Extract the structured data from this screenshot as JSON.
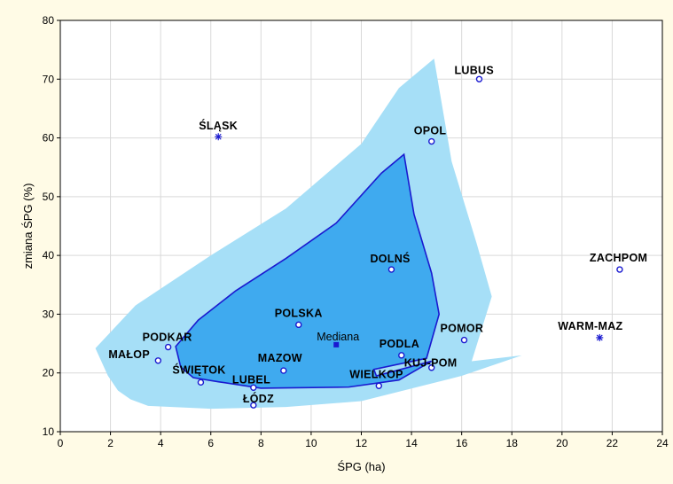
{
  "chart_data": {
    "type": "scatter",
    "xlabel": "ŚPG (ha)",
    "ylabel": "zmiana ŚPG (%)",
    "xlim": [
      0,
      24
    ],
    "ylim": [
      10,
      80
    ],
    "x_ticks": [
      0,
      2,
      4,
      6,
      8,
      10,
      12,
      14,
      16,
      18,
      20,
      22,
      24
    ],
    "y_ticks": [
      10,
      20,
      30,
      40,
      50,
      60,
      70,
      80
    ],
    "grid": true,
    "points": [
      {
        "label": "LUBUS",
        "x": 16.7,
        "y": 70.0,
        "marker": "circle"
      },
      {
        "label": "ŚLĄSK",
        "x": 6.3,
        "y": 60.2,
        "marker": "asterisk"
      },
      {
        "label": "OPOL",
        "x": 14.8,
        "y": 59.4,
        "marker": "circle"
      },
      {
        "label": "DOLNŚ",
        "x": 13.2,
        "y": 37.6,
        "marker": "circle"
      },
      {
        "label": "ZACHPOM",
        "x": 22.3,
        "y": 37.6,
        "marker": "circle"
      },
      {
        "label": "POLSKA",
        "x": 9.5,
        "y": 28.2,
        "marker": "circle"
      },
      {
        "label": "WARM-MAZ",
        "x": 21.5,
        "y": 26.0,
        "marker": "asterisk"
      },
      {
        "label": "POMOR",
        "x": 16.1,
        "y": 25.6,
        "marker": "circle"
      },
      {
        "label": "PODKAR",
        "x": 4.3,
        "y": 24.4,
        "marker": "circle"
      },
      {
        "label": "PODLA",
        "x": 13.6,
        "y": 23.0,
        "marker": "circle"
      },
      {
        "label": "MAŁOP",
        "x": 3.9,
        "y": 22.1,
        "marker": "circle"
      },
      {
        "label": "KUJ-POM",
        "x": 14.8,
        "y": 20.9,
        "marker": "circle"
      },
      {
        "label": "MAZOW",
        "x": 8.9,
        "y": 20.4,
        "marker": "circle"
      },
      {
        "label": "ŚWIĘTOK",
        "x": 5.6,
        "y": 18.4,
        "marker": "circle"
      },
      {
        "label": "WIELKOP",
        "x": 12.7,
        "y": 17.8,
        "marker": "circle"
      },
      {
        "label": "LUBEL",
        "x": 7.7,
        "y": 17.5,
        "marker": "circle"
      },
      {
        "label": "ŁÓDZ",
        "x": 7.7,
        "y": 14.5,
        "marker": "circle"
      }
    ],
    "median": {
      "label": "Mediana",
      "x": 11.0,
      "y": 24.8
    },
    "outer_region": [
      [
        1.4,
        24.2
      ],
      [
        3.0,
        31.5
      ],
      [
        6.0,
        40.0
      ],
      [
        9.0,
        48.0
      ],
      [
        12.0,
        59.0
      ],
      [
        13.5,
        68.5
      ],
      [
        14.9,
        73.5
      ],
      [
        15.6,
        56.0
      ],
      [
        16.6,
        42.0
      ],
      [
        17.2,
        33.0
      ],
      [
        16.4,
        22.0
      ],
      [
        18.4,
        23.0
      ],
      [
        16.0,
        19.5
      ],
      [
        12.0,
        15.2
      ],
      [
        9.0,
        14.2
      ],
      [
        6.0,
        13.9
      ],
      [
        3.5,
        14.4
      ],
      [
        2.8,
        15.5
      ],
      [
        2.3,
        17.0
      ],
      [
        1.9,
        19.5
      ]
    ],
    "inner_region": [
      [
        4.6,
        24.5
      ],
      [
        5.5,
        29.0
      ],
      [
        7.0,
        34.0
      ],
      [
        9.0,
        39.5
      ],
      [
        11.0,
        45.5
      ],
      [
        12.8,
        54.0
      ],
      [
        13.7,
        57.2
      ],
      [
        14.1,
        47.0
      ],
      [
        14.8,
        37.0
      ],
      [
        15.1,
        30.0
      ],
      [
        14.6,
        22.5
      ],
      [
        12.5,
        20.6
      ],
      [
        12.6,
        19.5
      ],
      [
        14.8,
        22.0
      ],
      [
        13.5,
        18.8
      ],
      [
        11.5,
        17.6
      ],
      [
        8.0,
        17.4
      ],
      [
        6.3,
        18.5
      ],
      [
        5.3,
        19.2
      ],
      [
        4.8,
        21.0
      ]
    ],
    "colors": {
      "outer_fill": "#a6dff7",
      "inner_fill": "#3faaef",
      "inner_stroke": "#1a1ad0",
      "marker": "#1a1ad0",
      "median_marker": "#1a1ad0",
      "background": "#fffbe6"
    }
  }
}
